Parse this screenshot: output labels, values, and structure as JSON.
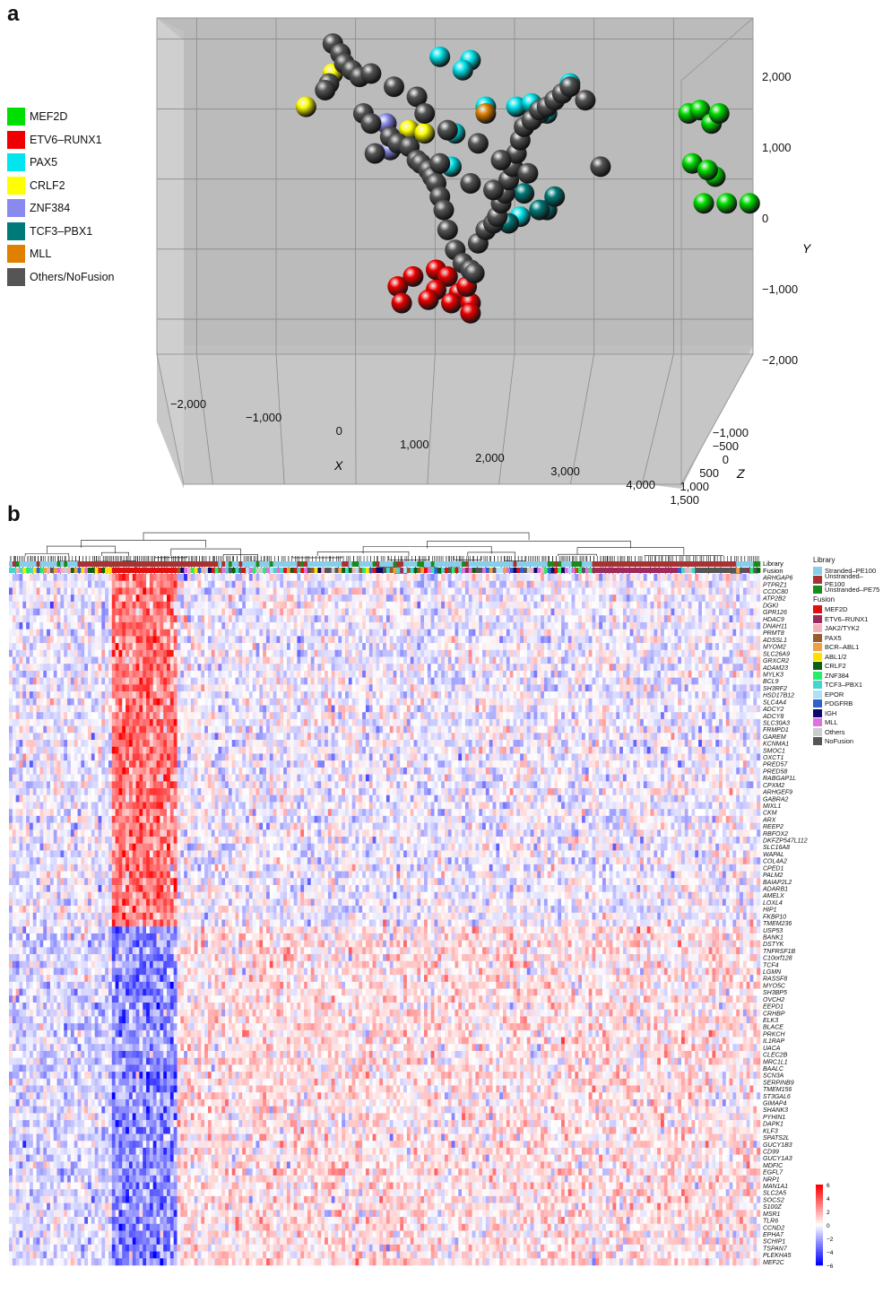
{
  "panel_a": {
    "letter": "a",
    "legend": [
      {
        "label": "MEF2D",
        "color": "#00e000"
      },
      {
        "label": "ETV6–RUNX1",
        "color": "#ee0000"
      },
      {
        "label": "PAX5",
        "color": "#00e5ee"
      },
      {
        "label": "CRLF2",
        "color": "#ffff00"
      },
      {
        "label": "ZNF384",
        "color": "#8a8aee"
      },
      {
        "label": "TCF3–PBX1",
        "color": "#007a78"
      },
      {
        "label": "MLL",
        "color": "#e08000"
      },
      {
        "label": "Others/NoFusion",
        "color": "#555555"
      }
    ]
  },
  "panel_b": {
    "letter": "b",
    "track_labels": {
      "library": "Library",
      "fusion": "Fusion"
    },
    "legend_library_title": "Library",
    "legend_library": [
      {
        "label": "Stranded–PE100",
        "color": "#87ceeb"
      },
      {
        "label": "Unstranded–PE100",
        "color": "#a83232"
      },
      {
        "label": "Unstranded–PE75",
        "color": "#1a8a1a"
      }
    ],
    "legend_fusion_title": "Fusion",
    "legend_fusion": [
      {
        "label": "MEF2D",
        "color": "#e01010"
      },
      {
        "label": "ETV6–RUNX1",
        "color": "#9c2a5c"
      },
      {
        "label": "JAK2/TYK2",
        "color": "#f4b0b8"
      },
      {
        "label": "PAX5",
        "color": "#9a5a2a"
      },
      {
        "label": "BCR–ABL1",
        "color": "#f0a040"
      },
      {
        "label": "ABL1/2",
        "color": "#ffe000"
      },
      {
        "label": "CRLF2",
        "color": "#0a6010"
      },
      {
        "label": "ZNF384",
        "color": "#22ee66"
      },
      {
        "label": "TCF3–PBX1",
        "color": "#44d6cc"
      },
      {
        "label": "EPOR",
        "color": "#b0e0f8"
      },
      {
        "label": "PDGFRB",
        "color": "#3060d0"
      },
      {
        "label": "IGH",
        "color": "#0a0a6a"
      },
      {
        "label": "MLL",
        "color": "#e070e0"
      },
      {
        "label": "Others",
        "color": "#cccccc"
      },
      {
        "label": "NoFusion",
        "color": "#555555"
      }
    ],
    "colorbar_ticks": [
      "6",
      "4",
      "2",
      "0",
      "−2",
      "−4",
      "−6"
    ],
    "genes": [
      "ARHGAP6",
      "PTPRZ1",
      "CCDC80",
      "ATP2B2",
      "DGKI",
      "GPR126",
      "HDAC9",
      "DNAH11",
      "PRMT8",
      "ADSSL1",
      "MYOM2",
      "SLC26A9",
      "GRXCR2",
      "ADAM23",
      "MYLK3",
      "BCL9",
      "SH3RF2",
      "HSD17B12",
      "SLC4A4",
      "ADCY2",
      "ADCY8",
      "SLC30A3",
      "FRMPD1",
      "GAREM",
      "KCNMA1",
      "SMOC1",
      "OXCT1",
      "PRED57",
      "PRED58",
      "RABGAP1L",
      "CPXM2",
      "ARHGEF9",
      "GABRA2",
      "MIXL1",
      "CKM",
      "ARX",
      "REEP2",
      "RBFOX2",
      "DKFZP547L112",
      "SLC16A8",
      "WAPAL",
      "COL4A2",
      "CPED1",
      "PALM2",
      "BAIAP2L2",
      "ADARB1",
      "AMELX",
      "LOXL4",
      "HIP1",
      "FKBP10",
      "TMEM236",
      "USP53",
      "BANK1",
      "DSTYK",
      "TNFRSF1B",
      "C10orf128",
      "TCF4",
      "LGMN",
      "RASSF8",
      "MYO5C",
      "SH3BP5",
      "OVCH2",
      "EEPD1",
      "CRHBP",
      "ELK3",
      "BLACE",
      "PRKCH",
      "IL1RAP",
      "UACA",
      "CLEC2B",
      "MRC1L1",
      "BAALC",
      "SCN3A",
      "SERPINB9",
      "TMEM156",
      "ST3GAL6",
      "GIMAP4",
      "SHANK3",
      "PYHIN1",
      "DAPK1",
      "KLF3",
      "SPATS2L",
      "GUCY1B3",
      "CD99",
      "GUCY1A3",
      "MDFIC",
      "EGFL7",
      "NRP1",
      "MAN1A1",
      "SLC2A5",
      "SOCS2",
      "S100Z",
      "MSR1",
      "TLR6",
      "CCND2",
      "EPHA7",
      "SCHIP1",
      "TSPAN7",
      "PLEKHA5",
      "MEF2C"
    ]
  },
  "chart_data": [
    {
      "type": "scatter",
      "subtype": "3d-scatter",
      "title": "",
      "axes": {
        "x": {
          "label": "X",
          "range": [
            -2500,
            5000
          ],
          "ticks": [
            -2000,
            -1000,
            0,
            1000,
            2000,
            3000,
            4000
          ],
          "tick_labels": [
            "−2,000",
            "−1,000",
            "0",
            "1,000",
            "2,000",
            "3,000",
            "4,000"
          ]
        },
        "y": {
          "label": "Y",
          "range": [
            -2500,
            2300
          ],
          "ticks": [
            2000,
            1000,
            0,
            -1000,
            -2000
          ],
          "tick_labels": [
            "2,000",
            "1,000",
            "0",
            "−1,000",
            "−2,000"
          ]
        },
        "z": {
          "label": "Z",
          "range": [
            -1000,
            1500
          ],
          "ticks": [
            -1000,
            -500,
            0,
            500,
            1000,
            1500
          ],
          "tick_labels": [
            "−1,000",
            "−500",
            "0",
            "500",
            "1,000",
            "1,500"
          ]
        }
      },
      "grid": true,
      "legend_position": "left",
      "series": [
        {
          "name": "MEF2D",
          "x": [
            4450,
            4600,
            4750,
            4850,
            4500,
            4800,
            4700,
            4650,
            4950,
            5250
          ],
          "y": [
            1050,
            1100,
            900,
            1050,
            300,
            100,
            200,
            -300,
            -300,
            -300
          ]
        },
        {
          "name": "ETV6–RUNX1",
          "x": [
            650,
            850,
            1150,
            1300,
            1150,
            1450,
            1350,
            1600,
            1600,
            700,
            1050,
            1550
          ],
          "y": [
            -1550,
            -1400,
            -1300,
            -1400,
            -1600,
            -1650,
            -1800,
            -1800,
            -1950,
            -1800,
            -1750,
            -1550
          ]
        },
        {
          "name": "PAX5",
          "x": [
            1200,
            1600,
            1800,
            2200,
            2400,
            2600,
            2900,
            1400,
            1350,
            2500,
            2250,
            1500
          ],
          "y": [
            1900,
            1850,
            1150,
            1150,
            1200,
            1050,
            1500,
            750,
            250,
            1050,
            -500,
            1700
          ]
        },
        {
          "name": "CRLF2",
          "x": [
            -200,
            -550,
            800,
            1000
          ],
          "y": [
            1650,
            1150,
            800,
            750
          ]
        },
        {
          "name": "ZNF384",
          "x": [
            500,
            550
          ],
          "y": [
            900,
            500
          ]
        },
        {
          "name": "TCF3–PBX1",
          "x": [
            2300,
            2600,
            2500,
            2100,
            2700
          ],
          "y": [
            -150,
            -400,
            -400,
            -600,
            -200
          ]
        },
        {
          "name": "MLL",
          "x": [
            1800
          ],
          "y": [
            1050
          ]
        },
        {
          "name": "Others/NoFusion",
          "x": [
            -200,
            -100,
            -50,
            50,
            150,
            -250,
            -300,
            200,
            300,
            550,
            350,
            650,
            800,
            900,
            950,
            1050,
            1100,
            1150,
            1200,
            1250,
            1300,
            1400,
            1500,
            1600,
            1650,
            1700,
            1800,
            1900,
            1950,
            2000,
            2050,
            2100,
            2150,
            2200,
            2250,
            2300,
            2400,
            2500,
            2600,
            2700,
            2800,
            2900,
            3100,
            300,
            600,
            900,
            1300,
            1700,
            2000,
            2350,
            3300,
            1000,
            1200,
            1600,
            1900
          ],
          "y": [
            2100,
            1950,
            1800,
            1700,
            1600,
            1500,
            1400,
            1050,
            900,
            700,
            450,
            600,
            550,
            350,
            300,
            200,
            100,
            0,
            -200,
            -400,
            -700,
            -1000,
            -1200,
            -1300,
            -1350,
            -900,
            -700,
            -600,
            -500,
            -300,
            -150,
            50,
            250,
            450,
            650,
            850,
            950,
            1100,
            1150,
            1250,
            1350,
            1450,
            1250,
            1650,
            1450,
            1300,
            800,
            600,
            350,
            150,
            250,
            1050,
            300,
            0,
            -100
          ]
        }
      ]
    },
    {
      "type": "heatmap",
      "title": "",
      "rows": "genes",
      "n_rows": 100,
      "n_columns": 219,
      "value_range": [
        -6,
        6
      ],
      "color_scale": {
        "low": "#0000ff",
        "mid": "#ffffff",
        "high": "#ff0000"
      },
      "annotation_tracks": [
        "Library",
        "Fusion"
      ],
      "row_groups": [
        {
          "genes": "ARHGAP6 – TMEM236",
          "pattern": "high (red) in MEF2D column cluster"
        },
        {
          "genes": "USP53 – MEF2C",
          "pattern": "low (blue) in MEF2D column cluster"
        }
      ],
      "dendrogram": "columns"
    }
  ]
}
